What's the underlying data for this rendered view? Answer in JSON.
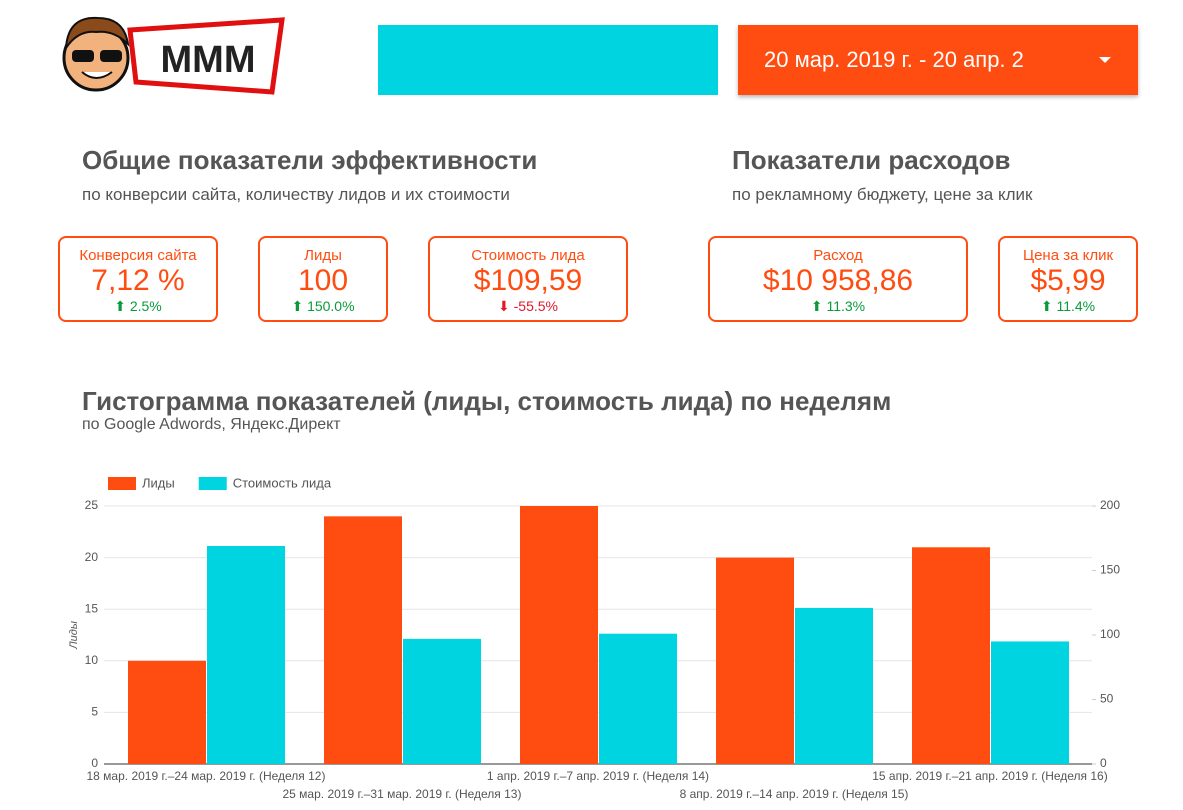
{
  "header": {
    "logo": "MMM",
    "date_range": "20 мар. 2019 г. - 20 апр. 2"
  },
  "sections": [
    {
      "title": "Общие показатели эффективности",
      "subtitle": "по конверсии сайта, количеству лидов и их стоимости"
    },
    {
      "title": "Показатели расходов",
      "subtitle": "по рекламному бюджету, цене за клик"
    }
  ],
  "kpis": [
    {
      "label": "Конверсия сайта",
      "value": "7,12 %",
      "change": "2.5%"
    },
    {
      "label": "Лиды",
      "value": "100",
      "change": "150.0%"
    },
    {
      "label": "Стоимость лида",
      "value": "$109,59",
      "change": "-55.5%"
    },
    {
      "label": "Расход",
      "value": "$10 958,86",
      "change": "11.3%"
    },
    {
      "label": "Цена за клик",
      "value": "$5,99",
      "change": "11.4%"
    }
  ],
  "chart_data": {
    "type": "bar",
    "title": "Гистограмма показателей (лиды, стоимость лида) по неделям",
    "subtitle": "по Google Adwords, Яндекс.Директ",
    "ylabel": "Лиды",
    "categories": [
      "18 мар. 2019 г.–24 мар. 2019 г. (Неделя 12)",
      "25 мар. 2019 г.–31 мар. 2019 г. (Неделя 13)",
      "1 апр. 2019 г.–7 апр. 2019 г. (Неделя 14)",
      "8 апр. 2019 г.–14 апр. 2019 г. (Неделя 15)",
      "15 апр. 2019 г.–21 апр. 2019 г. (Неделя 16)"
    ],
    "series": [
      {
        "name": "Лиды",
        "color": "#ff4d12",
        "values": [
          10,
          24,
          25,
          20,
          21
        ]
      },
      {
        "name": "Стоимость лида",
        "color": "#00d4e0",
        "axis": "y2",
        "values": [
          169,
          97,
          101,
          121,
          95
        ]
      }
    ],
    "ylim": [
      0,
      25
    ],
    "yticks": [
      0,
      5,
      10,
      15,
      20,
      25
    ],
    "y2lim": [
      0,
      200
    ],
    "y2ticks": [
      0,
      50,
      100,
      150,
      200
    ],
    "grid": true
  }
}
